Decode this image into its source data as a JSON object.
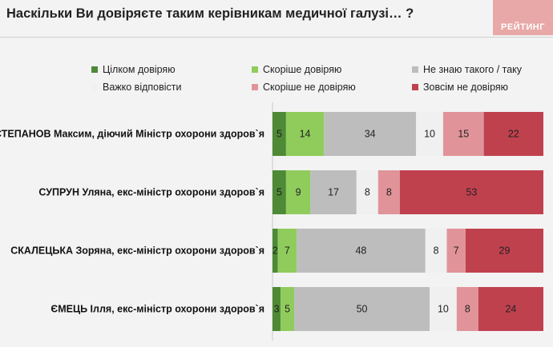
{
  "title": "Наскільки Ви довіряєте таким керівникам медичної галузі… ?",
  "logo_text": "РЕЙТИНГ",
  "chart_data": {
    "type": "bar",
    "orientation": "horizontal",
    "stacked": true,
    "percent": true,
    "legend_position": "top",
    "categories": [
      "СТЕПАНОВ Максим, діючий Міністр охорони здоров`я",
      "СУПРУН Уляна, екс-міністр охорони здоров`я",
      "СКАЛЕЦЬКА Зоряна, екс-міністр охорони здоров`я",
      "ЄМЕЦЬ Ілля, екс-міністр охорони здоров`я"
    ],
    "series": [
      {
        "name": "Цілком довіряю",
        "color": "#4e8a36",
        "values": [
          5,
          5,
          2,
          3
        ]
      },
      {
        "name": "Скоріше довіряю",
        "color": "#8fcc5c",
        "values": [
          14,
          9,
          7,
          5
        ]
      },
      {
        "name": "Не знаю такого / таку",
        "color": "#bdbdbd",
        "values": [
          34,
          17,
          48,
          50
        ]
      },
      {
        "name": "Важко відповісти",
        "color": "#f0f0f0",
        "values": [
          10,
          8,
          8,
          10
        ]
      },
      {
        "name": "Скоріше не довіряю",
        "color": "#e0949a",
        "values": [
          15,
          8,
          7,
          8
        ]
      },
      {
        "name": "Зовсім не довіряю",
        "color": "#c0414e",
        "values": [
          22,
          53,
          29,
          24
        ]
      }
    ]
  }
}
